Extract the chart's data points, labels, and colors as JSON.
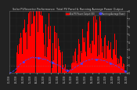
{
  "title": "Solar PV/Inverter Performance  Total PV Panel & Running Average Power Output",
  "bg_color": "#222222",
  "plot_bg": "#1a1a1a",
  "bar_color": "#ff0000",
  "avg_color": "#4444ff",
  "grid_color": "#555555",
  "text_color": "#cccccc",
  "ylim": [
    0,
    8
  ],
  "ytick_labels": [
    "0",
    "1",
    "2",
    "3",
    "4",
    "5",
    "6",
    "7",
    "8"
  ],
  "ytick_vals": [
    0,
    1,
    2,
    3,
    4,
    5,
    6,
    7,
    8
  ],
  "n_points": 730,
  "legend_red_label": "Total PV Power Output (W)",
  "legend_blue_label": "Running Average Power"
}
